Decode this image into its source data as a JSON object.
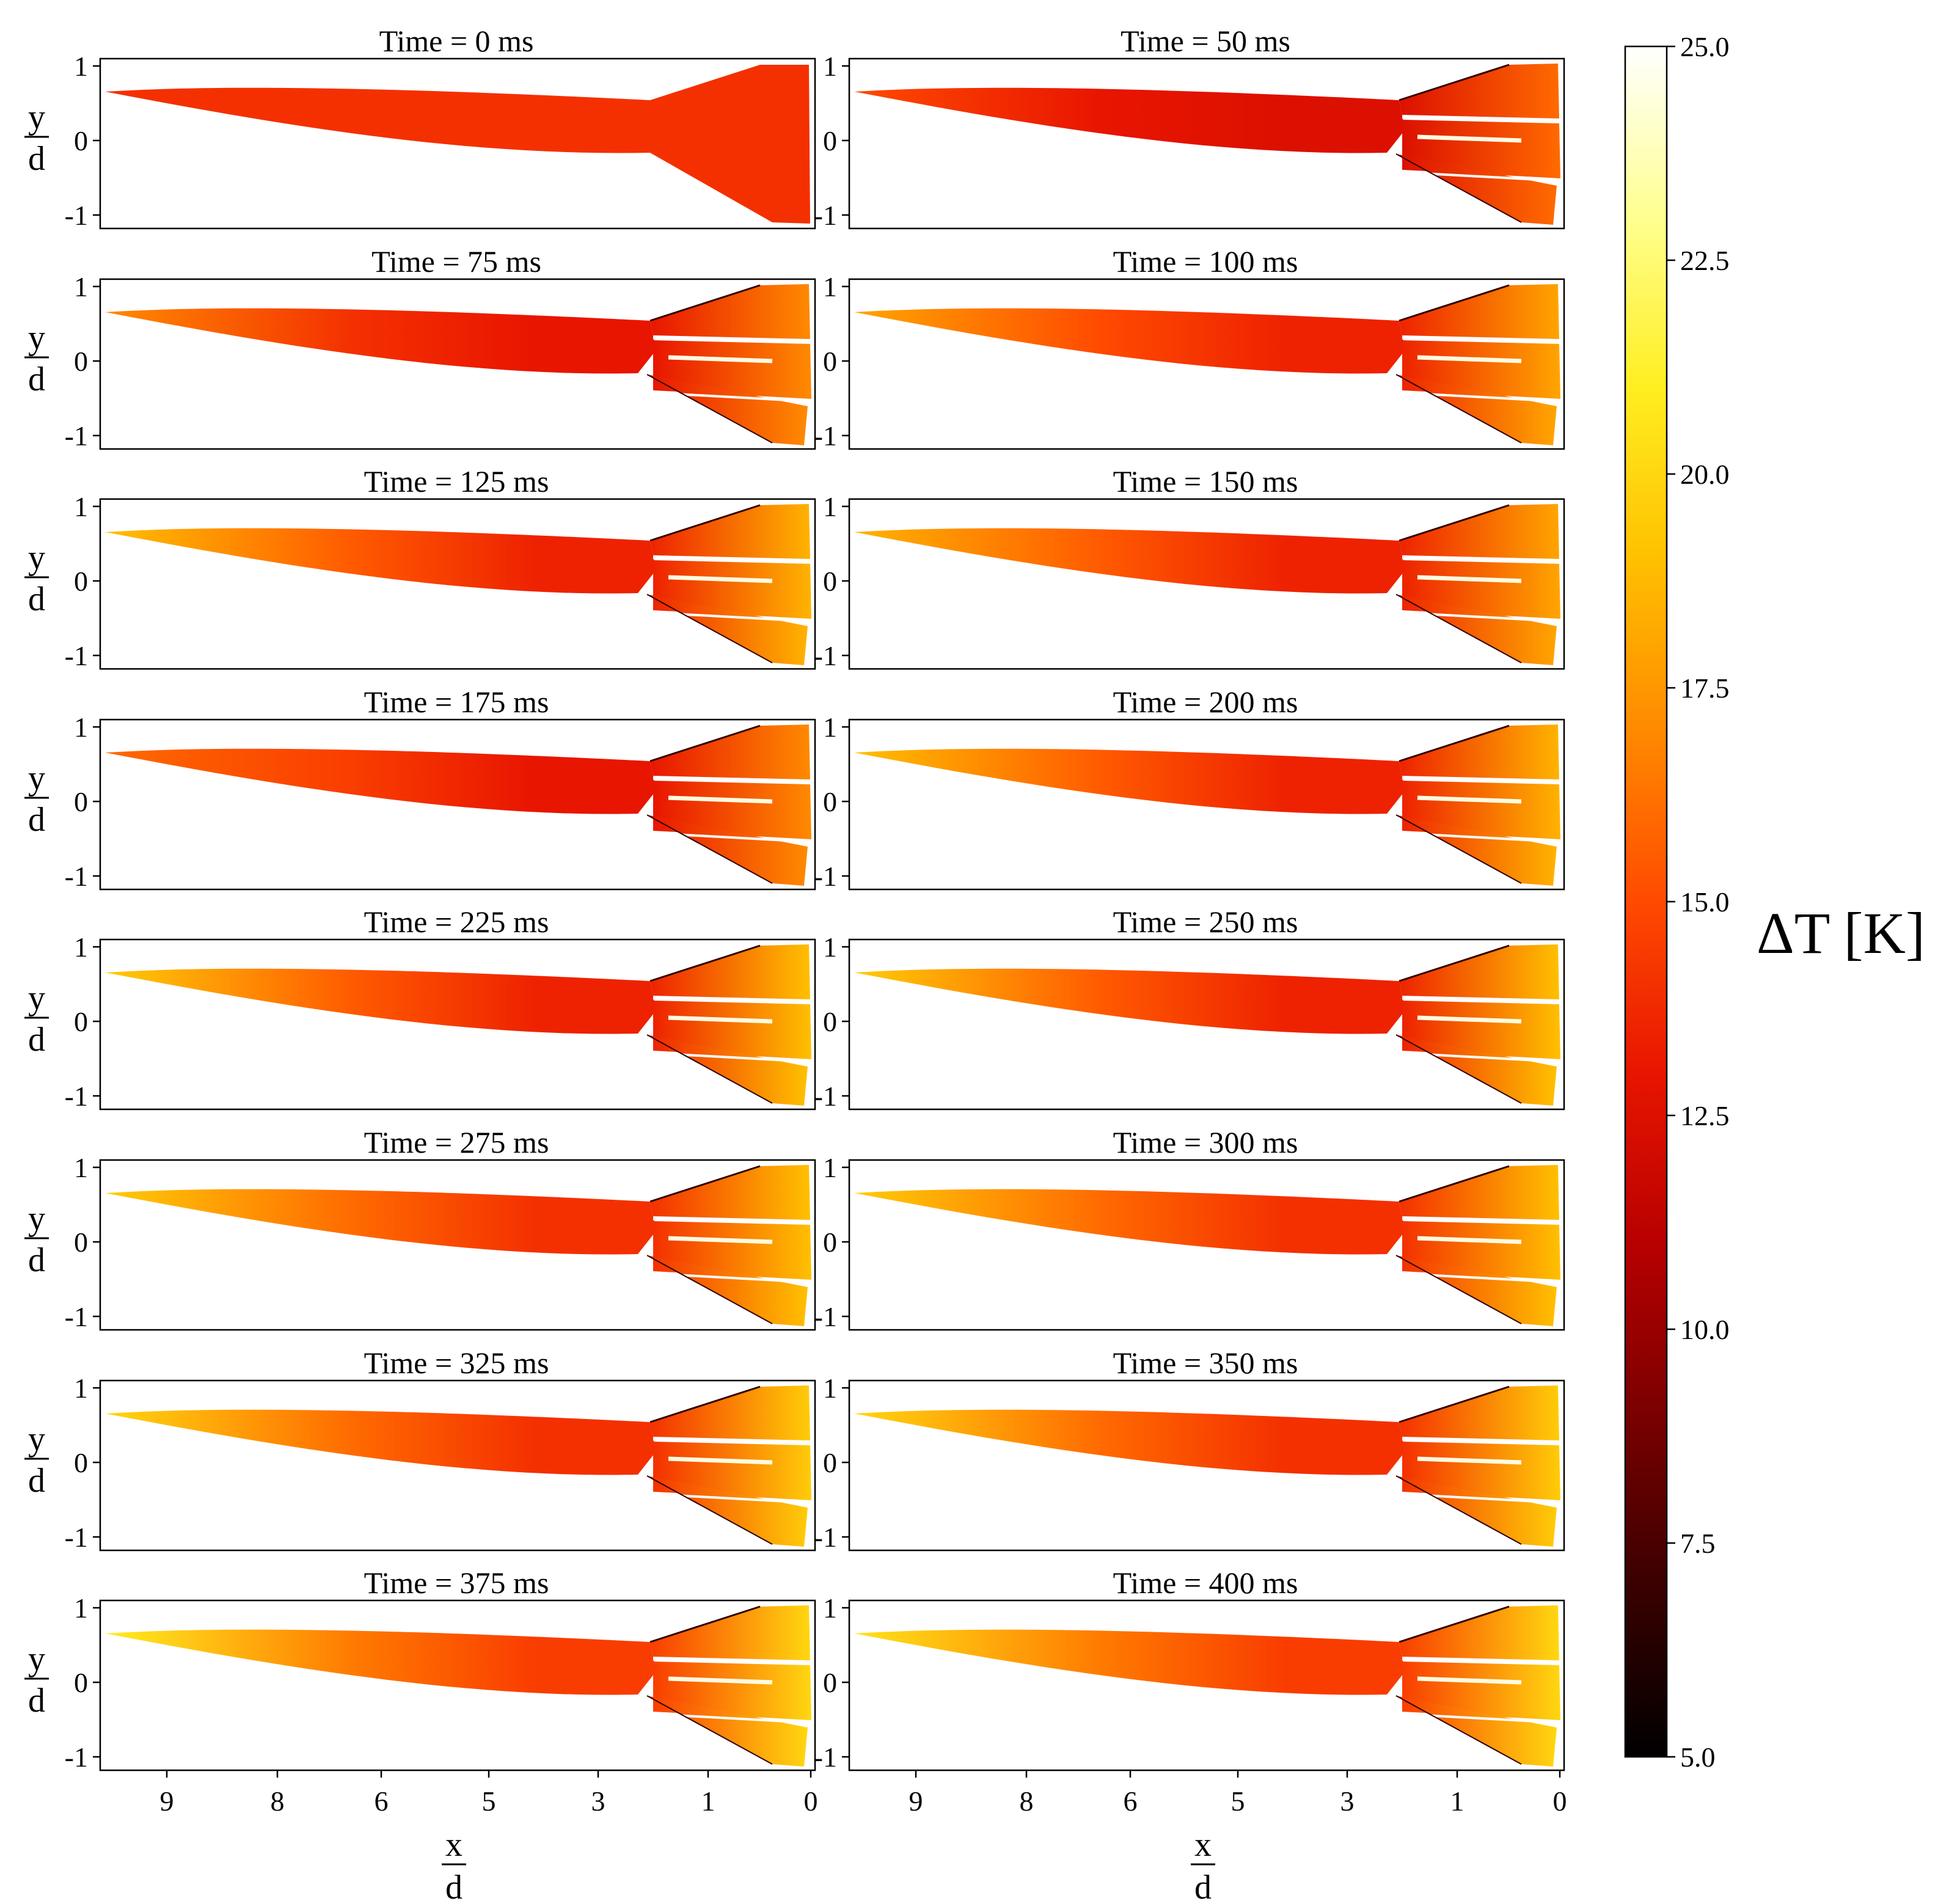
{
  "chart_data": {
    "type": "heatmap",
    "layout": "grid 9 rows x 2 columns",
    "panel_titles": [
      "Time = 0 ms",
      "Time = 50 ms",
      "Time = 75 ms",
      "Time = 100 ms",
      "Time = 125 ms",
      "Time = 150 ms",
      "Time = 175 ms",
      "Time = 200 ms",
      "Time = 225 ms",
      "Time = 250 ms",
      "Time = 275 ms",
      "Time = 300 ms",
      "Time = 325 ms",
      "Time = 350 ms",
      "Time = 375 ms",
      "Time = 400 ms"
    ],
    "times_ms": [
      0,
      50,
      75,
      100,
      125,
      150,
      175,
      200,
      225,
      250,
      275,
      300,
      325,
      350,
      375,
      400
    ],
    "xlabel": {
      "num": "x",
      "den": "d"
    },
    "ylabel": {
      "num": "y",
      "den": "d"
    },
    "x_ticks": [
      "9",
      "8",
      "6",
      "5",
      "3",
      "1",
      "0"
    ],
    "y_ticks": [
      "1",
      "0",
      "-1"
    ],
    "x_axis_reversed": true,
    "colorbar": {
      "label": "ΔT [K]",
      "range": [
        5.0,
        25.0
      ],
      "ticks": [
        "25.0",
        "22.5",
        "20.0",
        "17.5",
        "15.0",
        "12.5",
        "10.0",
        "7.5",
        "5.0"
      ],
      "colormap": [
        "#000000",
        "#3a0000",
        "#7a0000",
        "#b80000",
        "#e81500",
        "#ff4a00",
        "#ff8a00",
        "#ffc000",
        "#ffee20",
        "#ffff90",
        "#ffffff"
      ]
    },
    "surface_temperature_K": {
      "0": {
        "nose": 14.0,
        "mid": 14.0,
        "aft": 14.0,
        "fins": 14.0
      },
      "50": {
        "nose": 15.0,
        "mid": 13.0,
        "aft": 12.5,
        "fins": 16.0
      },
      "75": {
        "nose": 17.0,
        "mid": 14.0,
        "aft": 13.0,
        "fins": 17.0
      },
      "100": {
        "nose": 18.0,
        "mid": 15.0,
        "aft": 13.5,
        "fins": 18.0
      },
      "125": {
        "nose": 19.0,
        "mid": 15.5,
        "aft": 13.5,
        "fins": 18.5
      },
      "150": {
        "nose": 18.5,
        "mid": 15.5,
        "aft": 13.5,
        "fins": 18.0
      },
      "175": {
        "nose": 16.0,
        "mid": 14.5,
        "aft": 13.0,
        "fins": 17.0
      },
      "200": {
        "nose": 19.0,
        "mid": 15.5,
        "aft": 13.5,
        "fins": 18.5
      },
      "225": {
        "nose": 19.5,
        "mid": 15.5,
        "aft": 13.5,
        "fins": 19.0
      },
      "250": {
        "nose": 19.5,
        "mid": 15.5,
        "aft": 13.5,
        "fins": 19.0
      },
      "275": {
        "nose": 19.5,
        "mid": 16.0,
        "aft": 14.0,
        "fins": 19.0
      },
      "300": {
        "nose": 19.5,
        "mid": 16.0,
        "aft": 14.0,
        "fins": 19.0
      },
      "325": {
        "nose": 20.0,
        "mid": 16.0,
        "aft": 14.0,
        "fins": 19.5
      },
      "350": {
        "nose": 20.0,
        "mid": 16.0,
        "aft": 14.0,
        "fins": 19.5
      },
      "375": {
        "nose": 21.0,
        "mid": 16.5,
        "aft": 14.5,
        "fins": 20.0
      },
      "400": {
        "nose": 20.5,
        "mid": 16.5,
        "aft": 14.5,
        "fins": 20.0
      }
    }
  }
}
